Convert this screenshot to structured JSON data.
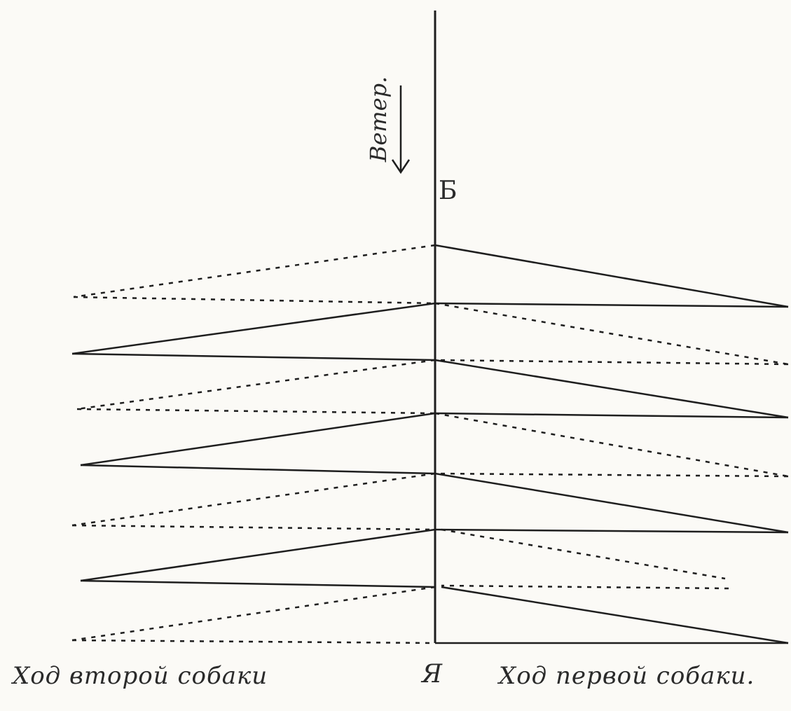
{
  "labels": {
    "wind": "Ветер.",
    "point_b": "Б",
    "point_me": "Я",
    "second_dog_path": "Ход второй собаки",
    "first_dog_path": "Ход первой собаки."
  },
  "colors": {
    "ink": "#1e1e1e",
    "paper": "#fbfaf6"
  }
}
